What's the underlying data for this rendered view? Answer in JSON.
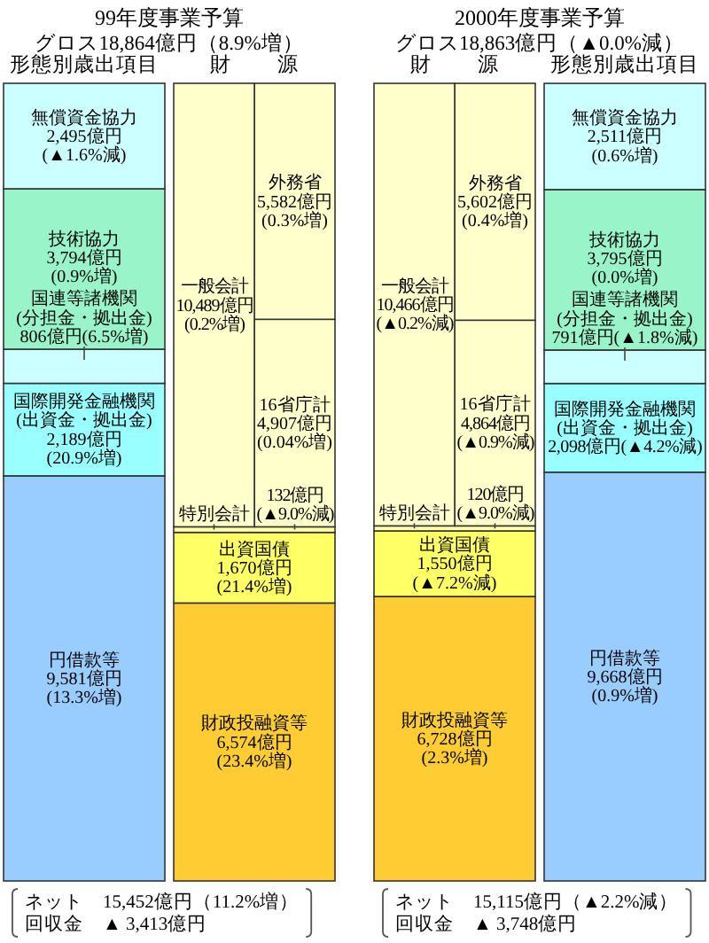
{
  "chart_data": [
    {
      "type": "bar",
      "stacked": true,
      "title": "99年度事業予算",
      "subtitle": "グロス18,864億円（8.9%増）",
      "categories": [
        "形態別歳出項目",
        "財　源"
      ],
      "tick_labels": "x",
      "series": [
        {
          "name": "円借款等",
          "color": "#99ccff",
          "values": [
            9581,
            null
          ],
          "value_labels": [
            "9,581億円\n(13.3%増)",
            null
          ]
        },
        {
          "name": "国際開発金融機関\n(出資金・拠出金)",
          "color": "#99ffff",
          "values": [
            2189,
            null
          ],
          "value_labels": [
            "2,189億円\n(20.9%増)",
            null
          ]
        },
        {
          "name": "国連等諸機関\n(分担金・拠出金)",
          "color": "#ccffff",
          "values": [
            806,
            null
          ],
          "value_labels": [
            "806億円(6.5%増)",
            null
          ]
        },
        {
          "name": "技術協力",
          "color": "#99f5c9",
          "values": [
            3794,
            null
          ],
          "value_labels": [
            "3,794億円\n(0.9%増)",
            null
          ]
        },
        {
          "name": "無償資金協力",
          "color": "#ccffff",
          "values": [
            2495,
            null
          ],
          "value_labels": [
            "2,495億円\n(▲1.6%減)",
            null
          ]
        },
        {
          "name": "財政投融資等",
          "color": "#ffcc33",
          "values": [
            null,
            6574
          ],
          "value_labels": [
            null,
            "6,574億円\n(23.4%増)"
          ]
        },
        {
          "name": "出資国債",
          "color": "#ffff66",
          "values": [
            null,
            1670
          ],
          "value_labels": [
            null,
            "1,670億円\n(21.4%増)"
          ]
        },
        {
          "name": "特別会計",
          "color": "#ffffaa",
          "values": [
            null,
            132
          ],
          "value_labels": [
            null,
            "132億円(▲9.0%減)"
          ]
        },
        {
          "name": "16省庁計",
          "color": "#ffffcc",
          "values": [
            null,
            4907
          ],
          "value_labels": [
            null,
            "4,907億円\n(0.04%増)"
          ]
        },
        {
          "name": "外務省",
          "color": "#ffffcc",
          "values": [
            null,
            5582
          ],
          "value_labels": [
            null,
            "5,582億円\n(0.3%増)"
          ]
        }
      ],
      "annotations": [
        {
          "text": "一般会計\n10,489億円\n(0.2%増)",
          "x": "財　源",
          "y": 13620
        },
        "ネット　15,452億円（11.2%増）",
        "回収金　▲ 3,413億円"
      ]
    },
    {
      "type": "bar",
      "stacked": true,
      "title": "2000年度事業予算",
      "subtitle": "グロス18,863億円（▲0.0%減）",
      "categories": [
        "財　源",
        "形態別歳出項目"
      ],
      "tick_labels": "x",
      "series": [
        {
          "name": "財政投融資等",
          "color": "#ffcc33",
          "values": [
            6728,
            null
          ],
          "value_labels": [
            "6,728億円\n(2.3%増)",
            null
          ]
        },
        {
          "name": "出資国債",
          "color": "#ffff66",
          "values": [
            1550,
            null
          ],
          "value_labels": [
            "1,550億円\n(▲7.2%減)",
            null
          ]
        },
        {
          "name": "特別会計",
          "color": "#ffffaa",
          "values": [
            120,
            null
          ],
          "value_labels": [
            "120億円(▲9.0%減)",
            null
          ]
        },
        {
          "name": "16省庁計",
          "color": "#ffffcc",
          "values": [
            4864,
            null
          ],
          "value_labels": [
            "4,864億円\n(▲0.9%減)",
            null
          ]
        },
        {
          "name": "外務省",
          "color": "#ffffcc",
          "values": [
            5602,
            null
          ],
          "value_labels": [
            "5,602億円\n(0.4%増)",
            null
          ]
        },
        {
          "name": "円借款等",
          "color": "#99ccff",
          "values": [
            null,
            9668
          ],
          "value_labels": [
            null,
            "9,668億円\n(0.9%増)"
          ]
        },
        {
          "name": "国際開発金融機関\n(出資金・拠出金)",
          "color": "#99ffff",
          "values": [
            null,
            2098
          ],
          "value_labels": [
            null,
            "2,098億円(▲4.2%減)"
          ]
        },
        {
          "name": "国連等諸機関\n(分担金・拠出金)",
          "color": "#ccffff",
          "values": [
            null,
            791
          ],
          "value_labels": [
            null,
            "791億円(▲1.8%減)"
          ]
        },
        {
          "name": "技術協力",
          "color": "#99f5c9",
          "values": [
            null,
            3795
          ],
          "value_labels": [
            null,
            "3,795億円\n(0.0%増)"
          ]
        },
        {
          "name": "無償資金協力",
          "color": "#ccffff",
          "values": [
            null,
            2511
          ],
          "value_labels": [
            null,
            "2,511億円\n(0.6%増)"
          ]
        }
      ],
      "annotations": [
        {
          "text": "一般会計\n10,466億円\n(▲0.2%減)",
          "x": "財　源",
          "y": 13631
        },
        "ネット　15,115億円（▲2.2%減）",
        "回収金　▲ 3,748億円"
      ]
    }
  ]
}
